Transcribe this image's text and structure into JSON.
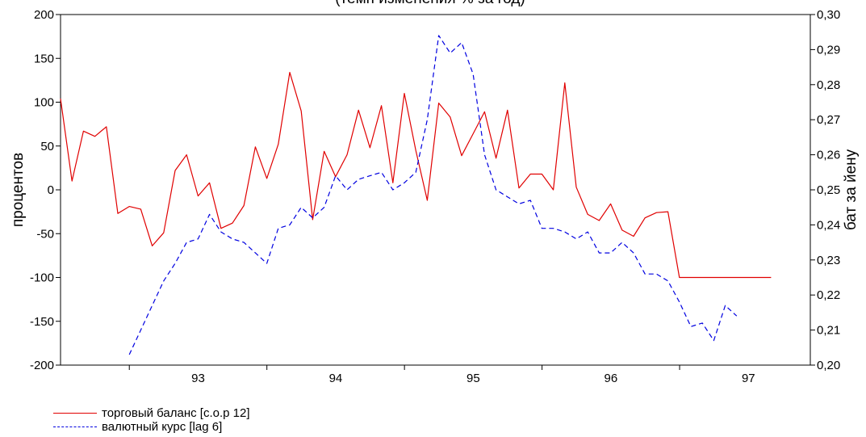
{
  "chart_data": {
    "type": "line",
    "title": "(темп изменения  % за год)",
    "ylabel_left": "процентов",
    "ylabel_right": "бат за йену",
    "x_ticks": [
      "93",
      "94",
      "95",
      "96",
      "97"
    ],
    "y_left": {
      "min": -200,
      "max": 200,
      "ticks": [
        200,
        150,
        100,
        50,
        0,
        -50,
        -100,
        -150,
        -200
      ],
      "tick_labels": [
        "200",
        "150",
        "100",
        "50",
        "0",
        "-50",
        "-100",
        "-150",
        "-200"
      ]
    },
    "y_right": {
      "min": 0.2,
      "max": 0.3,
      "ticks": [
        0.3,
        0.29,
        0.28,
        0.27,
        0.26,
        0.25,
        0.24,
        0.23,
        0.22,
        0.21,
        0.2
      ],
      "tick_labels": [
        "0,30",
        "0,29",
        "0,28",
        "0,27",
        "0,26",
        "0,25",
        "0,24",
        "0,23",
        "0,22",
        "0,21",
        "0,20"
      ]
    },
    "x_range": [
      1992.5,
      1997.95
    ],
    "grid": false,
    "legend_position": "bottom-left",
    "series": [
      {
        "name": "торговый баланс    [c.o.p 12]",
        "axis": "left",
        "color": "#e00000",
        "style": "solid",
        "start": 1992.5,
        "step": 0.0833,
        "values": [
          104,
          10,
          67,
          61,
          72,
          -27,
          -19,
          -22,
          -64,
          -49,
          22,
          40,
          -7,
          8,
          -44,
          -38,
          -18,
          49,
          13,
          52,
          134,
          90,
          -34,
          44,
          15,
          40,
          91,
          48,
          96,
          8,
          110,
          45,
          -12,
          99,
          83,
          39,
          64,
          89,
          36,
          91,
          2,
          18,
          18,
          0,
          122,
          3,
          -28,
          -35,
          -16,
          -46,
          -53,
          -32,
          -26,
          -25,
          -100,
          -100,
          -100,
          -100,
          -100,
          -100,
          -100,
          -100,
          -100
        ]
      },
      {
        "name": "валютный курс   [lag 6]",
        "axis": "right",
        "color": "#0000e0",
        "style": "dashed",
        "start": 1993.0,
        "step": 0.0833,
        "values": [
          0.203,
          0.21,
          0.217,
          0.224,
          0.229,
          0.235,
          0.236,
          0.243,
          0.238,
          0.236,
          0.235,
          0.232,
          0.229,
          0.239,
          0.24,
          0.245,
          0.242,
          0.245,
          0.254,
          0.25,
          0.253,
          0.254,
          0.255,
          0.25,
          0.252,
          0.255,
          0.27,
          0.294,
          0.289,
          0.292,
          0.283,
          0.26,
          0.25,
          0.248,
          0.246,
          0.247,
          0.239,
          0.239,
          0.238,
          0.236,
          0.238,
          0.232,
          0.232,
          0.235,
          0.232,
          0.226,
          0.226,
          0.224,
          0.218,
          0.211,
          0.212,
          0.207,
          0.217,
          0.214
        ]
      }
    ]
  }
}
